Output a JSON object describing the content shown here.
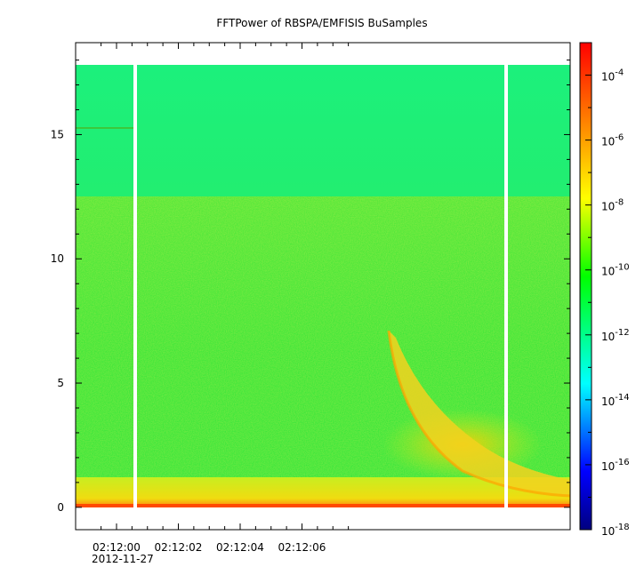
{
  "chart_data": {
    "type": "heatmap",
    "title": "FFTPower of RBSPA/EMFISIS  BuSamples",
    "xlabel": "",
    "ylabel": "",
    "x_ticks": [
      "02:12:00",
      "02:12:02",
      "02:12:04",
      "02:12:06"
    ],
    "x_date_label": "2012-11-27",
    "y_ticks": [
      "0",
      "5",
      "10",
      "15"
    ],
    "ylim": [
      -0.9,
      18.7
    ],
    "data_ylim": [
      0,
      17.5
    ],
    "colorbar": {
      "scale": "log",
      "range": [
        1e-18,
        0.001
      ],
      "tick_labels": [
        {
          "base": "10",
          "exp": "-4",
          "value": 0.0001
        },
        {
          "base": "10",
          "exp": "-6",
          "value": 1e-06
        },
        {
          "base": "10",
          "exp": "-8",
          "value": 1e-08
        },
        {
          "base": "10",
          "exp": "-10",
          "value": 1e-10
        },
        {
          "base": "10",
          "exp": "-12",
          "value": 1e-12
        },
        {
          "base": "10",
          "exp": "-14",
          "value": 1e-14
        },
        {
          "base": "10",
          "exp": "-16",
          "value": 1e-16
        },
        {
          "base": "10",
          "exp": "-18",
          "value": 1e-18
        }
      ],
      "colors": [
        "#000080",
        "#0000ff",
        "#00ffff",
        "#00ff00",
        "#ffff00",
        "#ff8000",
        "#ff0000"
      ]
    },
    "grid": false,
    "legend": "none"
  }
}
